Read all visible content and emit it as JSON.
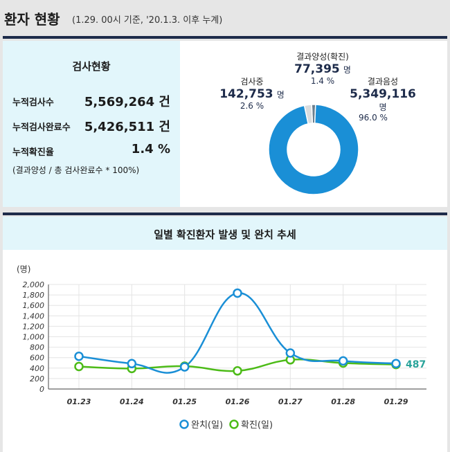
{
  "header": {
    "title": "환자 현황",
    "subtitle": "(1.29. 00시 기준, '20.1.3. 이후 누계)"
  },
  "tests": {
    "title": "검사현황",
    "rows": [
      {
        "label": "누적검사수",
        "value": "5,569,264 건"
      },
      {
        "label": "누적검사완료수",
        "value": "5,426,511 건"
      },
      {
        "label": "누적확진율",
        "value": "1.4 %"
      }
    ],
    "note": "(결과양성 / 총 검사완료수 * 100%)"
  },
  "donut": {
    "positive": {
      "name": "결과양성(확진)",
      "count": "77,395",
      "unit": "명",
      "pct": "1.4 %",
      "value": 1.4,
      "color": "#6b7f8e"
    },
    "testing": {
      "name": "검사중",
      "count": "142,753",
      "unit": "명",
      "pct": "2.6 %",
      "value": 2.6,
      "color": "#d9dcde"
    },
    "negative": {
      "name": "결과음성",
      "count": "5,349,116",
      "unit": "명",
      "pct": "96.0 %",
      "value": 96.0,
      "color": "#1a8fd6"
    }
  },
  "chart_data": {
    "type": "line",
    "title": "일별 확진환자 발생 및 완치 추세",
    "ylabel": "(명)",
    "xlabel": "",
    "categories": [
      "01.23",
      "01.24",
      "01.25",
      "01.26",
      "01.27",
      "01.28",
      "01.29"
    ],
    "ylim": [
      0,
      2000
    ],
    "yticks": [
      "0",
      "200",
      "400",
      "600",
      "800",
      "1,000",
      "1,200",
      "1,400",
      "1,600",
      "1,800",
      "2,000"
    ],
    "ytick_values": [
      0,
      200,
      400,
      600,
      800,
      1000,
      1200,
      1400,
      1600,
      1800,
      2000
    ],
    "series": [
      {
        "name": "완치(일)",
        "color": "#1a8fd6",
        "values": [
          626,
          486,
          423,
          1835,
          689,
          538,
          487
        ]
      },
      {
        "name": "확진(일)",
        "color": "#4cbb17",
        "values": [
          430,
          392,
          437,
          347,
          559,
          497,
          469
        ]
      }
    ],
    "end_label": "487",
    "grid": true,
    "legend": "bottom"
  }
}
